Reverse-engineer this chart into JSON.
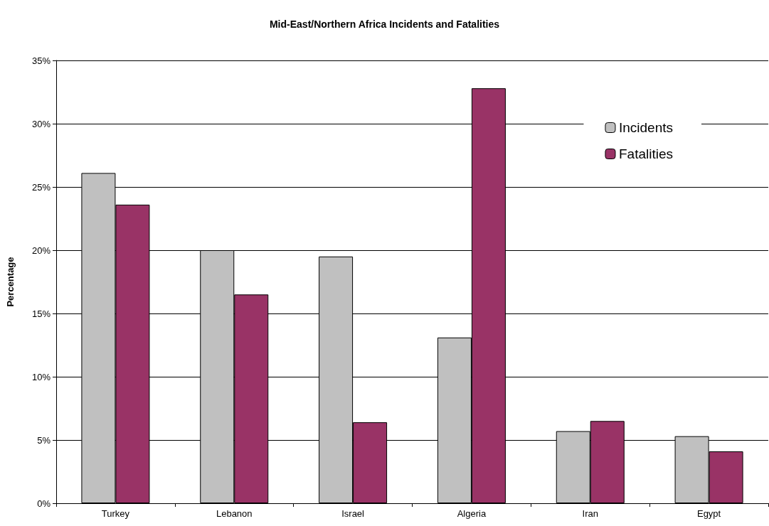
{
  "chart_data": {
    "type": "bar",
    "title": "Mid-East/Northern Africa Incidents and Fatalities",
    "ylabel": "Percentage",
    "categories": [
      "Turkey",
      "Lebanon",
      "Israel",
      "Algeria",
      "Iran",
      "Egypt"
    ],
    "series": [
      {
        "name": "Incidents",
        "color": "#c0c0c0",
        "values": [
          26.1,
          20.0,
          19.5,
          13.1,
          5.7,
          5.3
        ]
      },
      {
        "name": "Fatalities",
        "color": "#993366",
        "values": [
          23.6,
          16.5,
          6.4,
          32.8,
          6.5,
          4.1
        ]
      }
    ],
    "ylim": [
      0,
      35
    ],
    "yticks": [
      {
        "value": 0,
        "label": "0%"
      },
      {
        "value": 5,
        "label": "5%"
      },
      {
        "value": 10,
        "label": "10%"
      },
      {
        "value": 15,
        "label": "15%"
      },
      {
        "value": 20,
        "label": "20%"
      },
      {
        "value": 25,
        "label": "25%"
      },
      {
        "value": 30,
        "label": "30%"
      },
      {
        "value": 35,
        "label": "35%"
      }
    ],
    "grid": "y",
    "legend": "top right"
  }
}
